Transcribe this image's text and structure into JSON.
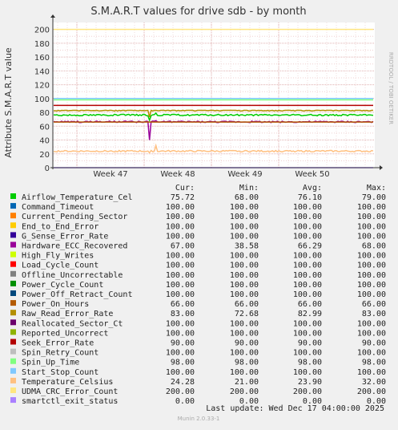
{
  "chart_data": {
    "type": "line",
    "title": "S.M.A.R.T values for drive sdb - by month",
    "ylabel": "Attribute S.M.A.R.T value",
    "side_label": "RRDTOOL / TOBI OETIKER",
    "x_ticks": [
      "Week 47",
      "Week 48",
      "Week 49",
      "Week 50"
    ],
    "y_ticks": [
      0,
      20,
      40,
      60,
      80,
      100,
      120,
      140,
      160,
      180,
      200
    ],
    "ylim": [
      0,
      210
    ],
    "grid": true,
    "legend_headers": {
      "cur": "Cur:",
      "min": "Min:",
      "avg": "Avg:",
      "max": "Max:"
    },
    "series": [
      {
        "name": "Airflow_Temperature_Cel",
        "color": "#00cc00",
        "cur": "75.72",
        "min": "68.00",
        "avg": "76.10",
        "max": "79.00"
      },
      {
        "name": "Command_Timeout",
        "color": "#0066b3",
        "cur": "100.00",
        "min": "100.00",
        "avg": "100.00",
        "max": "100.00"
      },
      {
        "name": "Current_Pending_Sector",
        "color": "#ff8000",
        "cur": "100.00",
        "min": "100.00",
        "avg": "100.00",
        "max": "100.00"
      },
      {
        "name": "End_to_End_Error",
        "color": "#ffcc00",
        "cur": "100.00",
        "min": "100.00",
        "avg": "100.00",
        "max": "100.00"
      },
      {
        "name": "G_Sense_Error_Rate",
        "color": "#330099",
        "cur": "100.00",
        "min": "100.00",
        "avg": "100.00",
        "max": "100.00"
      },
      {
        "name": "Hardware_ECC_Recovered",
        "color": "#990099",
        "cur": "67.00",
        "min": "38.58",
        "avg": "66.29",
        "max": "68.00"
      },
      {
        "name": "High_Fly_Writes",
        "color": "#ccff00",
        "cur": "100.00",
        "min": "100.00",
        "avg": "100.00",
        "max": "100.00"
      },
      {
        "name": "Load_Cycle_Count",
        "color": "#ff0000",
        "cur": "100.00",
        "min": "100.00",
        "avg": "100.00",
        "max": "100.00"
      },
      {
        "name": "Offline_Uncorrectable",
        "color": "#808080",
        "cur": "100.00",
        "min": "100.00",
        "avg": "100.00",
        "max": "100.00"
      },
      {
        "name": "Power_Cycle_Count",
        "color": "#008f00",
        "cur": "100.00",
        "min": "100.00",
        "avg": "100.00",
        "max": "100.00"
      },
      {
        "name": "Power_Off_Retract_Count",
        "color": "#00487d",
        "cur": "100.00",
        "min": "100.00",
        "avg": "100.00",
        "max": "100.00"
      },
      {
        "name": "Power_On_Hours",
        "color": "#b35a00",
        "cur": "66.00",
        "min": "66.00",
        "avg": "66.00",
        "max": "66.00"
      },
      {
        "name": "Raw_Read_Error_Rate",
        "color": "#b38f00",
        "cur": "83.00",
        "min": "72.68",
        "avg": "82.99",
        "max": "83.00"
      },
      {
        "name": "Reallocated_Sector_Ct",
        "color": "#6b006b",
        "cur": "100.00",
        "min": "100.00",
        "avg": "100.00",
        "max": "100.00"
      },
      {
        "name": "Reported_Uncorrect",
        "color": "#8fb300",
        "cur": "100.00",
        "min": "100.00",
        "avg": "100.00",
        "max": "100.00"
      },
      {
        "name": "Seek_Error_Rate",
        "color": "#b30000",
        "cur": "90.00",
        "min": "90.00",
        "avg": "90.00",
        "max": "90.00"
      },
      {
        "name": "Spin_Retry_Count",
        "color": "#bebebe",
        "cur": "100.00",
        "min": "100.00",
        "avg": "100.00",
        "max": "100.00"
      },
      {
        "name": "Spin_Up_Time",
        "color": "#80ff80",
        "cur": "98.00",
        "min": "98.00",
        "avg": "98.00",
        "max": "98.00"
      },
      {
        "name": "Start_Stop_Count",
        "color": "#80c9ff",
        "cur": "100.00",
        "min": "100.00",
        "avg": "100.00",
        "max": "100.00"
      },
      {
        "name": "Temperature_Celsius",
        "color": "#ffc080",
        "cur": "24.28",
        "min": "21.00",
        "avg": "23.90",
        "max": "32.00"
      },
      {
        "name": "UDMA_CRC_Error_Count",
        "color": "#ffe680",
        "cur": "200.00",
        "min": "200.00",
        "avg": "200.00",
        "max": "200.00"
      },
      {
        "name": "smartctl_exit_status",
        "color": "#aa80ff",
        "cur": "0.00",
        "min": "0.00",
        "avg": "0.00",
        "max": "0.00"
      }
    ],
    "last_update": "Last update: Wed Dec 17 04:00:00 2025",
    "footer": "Munin 2.0.33-1"
  }
}
